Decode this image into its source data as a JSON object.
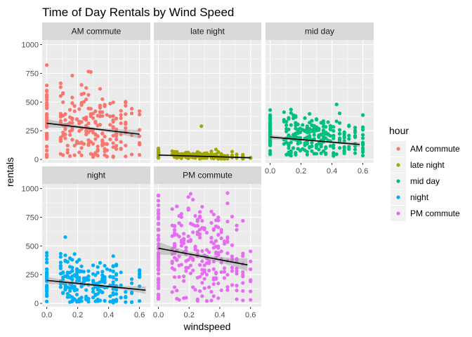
{
  "chart_data": {
    "type": "scatter",
    "title": "Time of Day Rentals by Wind Speed",
    "xlabel": "windspeed",
    "ylabel": "rentals",
    "xlim": [
      -0.03,
      0.67
    ],
    "ylim": [
      -30,
      1040
    ],
    "xticks": [
      0.0,
      0.2,
      0.4,
      0.6
    ],
    "xtick_labels": [
      "0.0",
      "0.2",
      "0.4",
      "0.6"
    ],
    "yticks": [
      0,
      250,
      500,
      750,
      1000
    ],
    "ytick_labels": [
      "0",
      "250",
      "500",
      "750",
      "1000"
    ],
    "grid": true,
    "legend": {
      "title": "hour",
      "position": "right"
    },
    "panels": [
      {
        "name": "AM commute",
        "color": "#F8766D",
        "y_center": 300,
        "y_spread": 180,
        "y_min": 20,
        "y_max": 840,
        "count": 260,
        "fit": {
          "x0": 0.0,
          "y0": 315,
          "x1": 0.6,
          "y1": 220
        },
        "band": 38
      },
      {
        "name": "late night",
        "color": "#A3A500",
        "y_center": 35,
        "y_spread": 18,
        "y_min": 5,
        "y_max": 290,
        "count": 200,
        "fit": {
          "x0": 0.0,
          "y0": 38,
          "x1": 0.6,
          "y1": 15
        },
        "band": 10
      },
      {
        "name": "mid day",
        "color": "#00BF7D",
        "y_center": 205,
        "y_spread": 95,
        "y_min": 30,
        "y_max": 550,
        "count": 300,
        "fit": {
          "x0": 0.0,
          "y0": 195,
          "x1": 0.58,
          "y1": 130
        },
        "band": 22
      },
      {
        "name": "night",
        "color": "#00B0F6",
        "y_center": 180,
        "y_spread": 110,
        "y_min": 5,
        "y_max": 580,
        "count": 260,
        "fit": {
          "x0": 0.0,
          "y0": 200,
          "x1": 0.64,
          "y1": 115
        },
        "band": 32
      },
      {
        "name": "PM commute",
        "color": "#E76BF3",
        "y_center": 430,
        "y_spread": 230,
        "y_min": 20,
        "y_max": 970,
        "count": 300,
        "fit": {
          "x0": 0.0,
          "y0": 480,
          "x1": 0.58,
          "y1": 335
        },
        "band": 55
      }
    ]
  }
}
